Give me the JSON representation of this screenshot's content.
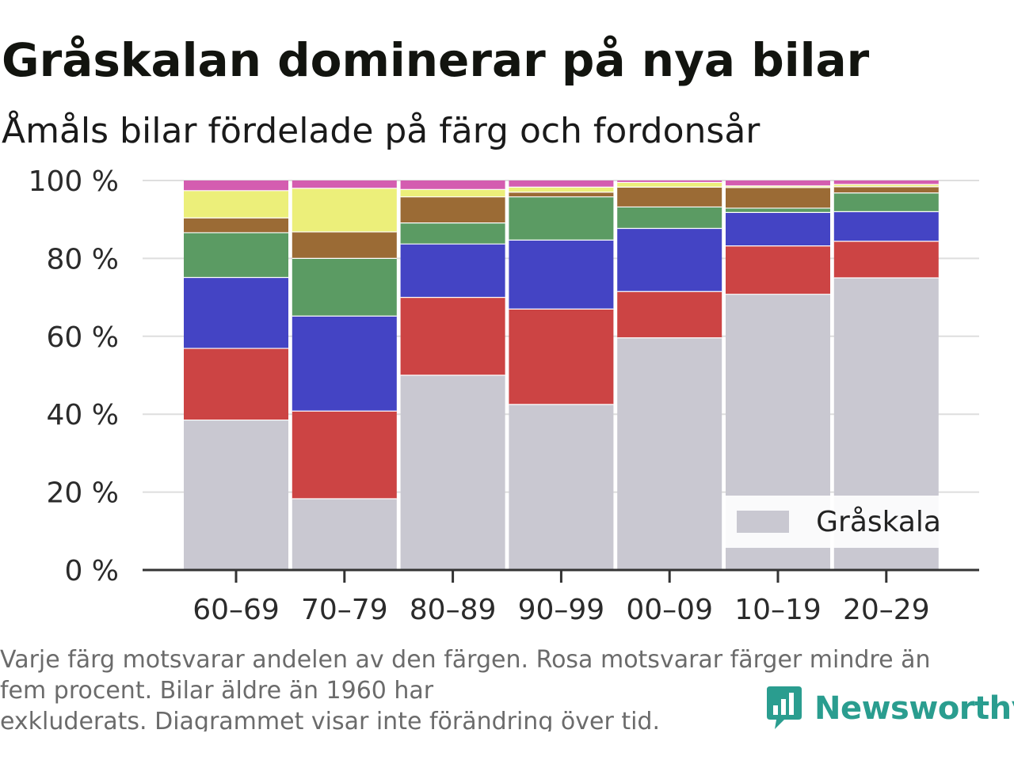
{
  "title": "Gråskalan dominerar på nya bilar",
  "subtitle": "Åmåls bilar fördelade på färg och fordonsår",
  "footnote": [
    "Varje färg motsvarar andelen av den färgen. Rosa motsvarar färger mindre än",
    "fem procent. Bilar äldre än 1960 har",
    "exkluderats. Diagrammet visar inte förändring över tid."
  ],
  "brand": {
    "name": "Newsworthy",
    "icon": "bar-chart-speech-icon",
    "color": "#2a9d8f"
  },
  "legend": {
    "label": "Gråskala",
    "color": "#c9c8d1"
  },
  "chart_data": {
    "type": "bar",
    "stacked": true,
    "categories": [
      "60–69",
      "70–79",
      "80–89",
      "90–99",
      "00–09",
      "10–19",
      "20–29"
    ],
    "ylim": [
      0,
      100
    ],
    "yticks": [
      0,
      20,
      40,
      60,
      80,
      100
    ],
    "ytick_labels": [
      "0 %",
      "20 %",
      "40 %",
      "60 %",
      "80 %",
      "100 %"
    ],
    "grid": true,
    "legend_position": "bottom-right",
    "series": [
      {
        "name": "Gråskala",
        "color": "#c9c8d1",
        "values": [
          38.5,
          18.3,
          50,
          42.5,
          59.6,
          70.8,
          75
        ]
      },
      {
        "color": "#cc4444",
        "values": [
          18.4,
          22.5,
          20,
          24.5,
          11.9,
          12.4,
          9.4
        ]
      },
      {
        "color": "#4444c4",
        "values": [
          18.2,
          24.4,
          13.7,
          17.7,
          16.2,
          8.6,
          7.6
        ]
      },
      {
        "color": "#5b9b63",
        "values": [
          11.5,
          14.8,
          5.4,
          11.1,
          5.5,
          1.1,
          4.8
        ]
      },
      {
        "color": "#9b6b35",
        "values": [
          3.8,
          6.8,
          6.7,
          1.2,
          5.1,
          5.3,
          1.6
        ]
      },
      {
        "color": "#ecef7a",
        "values": [
          7,
          11.2,
          1.9,
          1.3,
          1.2,
          0.4,
          0.6
        ]
      },
      {
        "color": "#d45db0",
        "values": [
          2.6,
          2,
          2.3,
          1.7,
          0.5,
          1.4,
          1
        ]
      }
    ]
  }
}
